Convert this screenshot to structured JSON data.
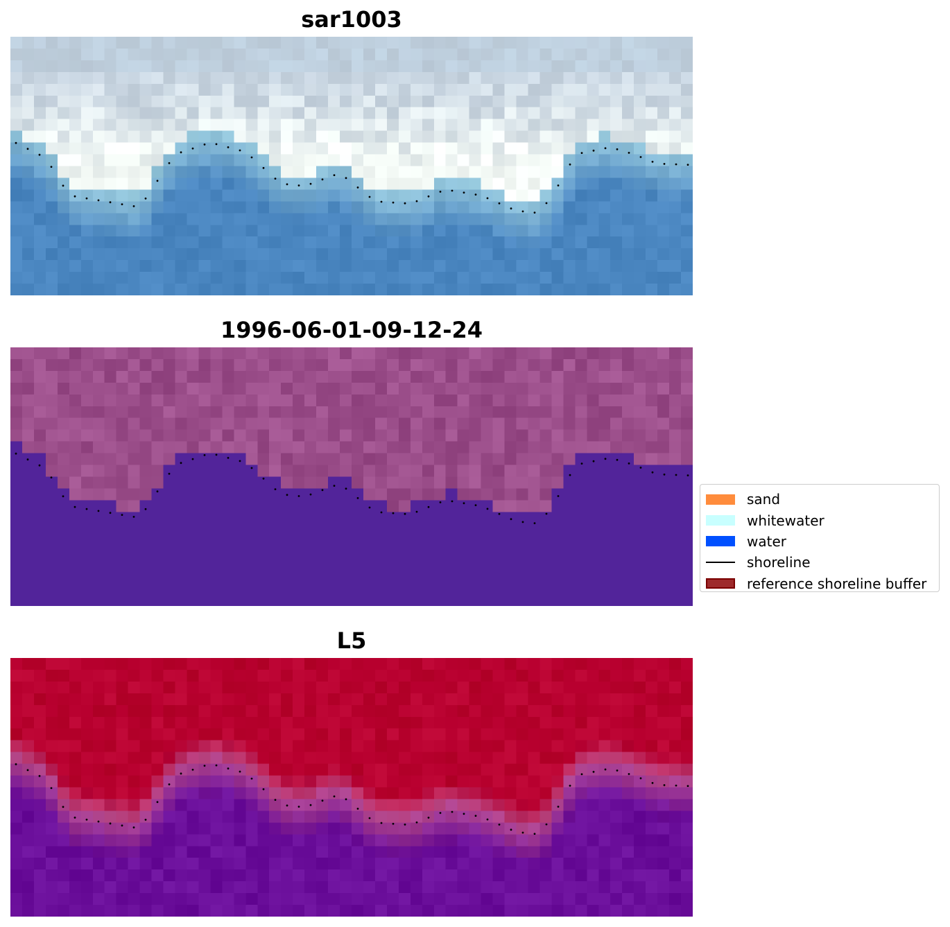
{
  "panels": [
    {
      "title": "sar1003",
      "rendering": "rgb-composite"
    },
    {
      "title": "1996-06-01-09-12-24",
      "rendering": "classification-overlay"
    },
    {
      "title": "L5",
      "rendering": "water-probability"
    }
  ],
  "legend": {
    "items": [
      {
        "label": "sand",
        "color": "#ff8c3c",
        "kind": "patch"
      },
      {
        "label": "whitewater",
        "color": "#c8ffff",
        "kind": "patch"
      },
      {
        "label": "water",
        "color": "#0050ff",
        "kind": "patch"
      },
      {
        "label": "shoreline",
        "color": "#000000",
        "kind": "line"
      },
      {
        "label": "reference shoreline buffer",
        "color": "#9e2a2b",
        "kind": "patch",
        "edge": "#7a0000"
      }
    ]
  },
  "colors": {
    "rgb_sand": "#c7d4e0",
    "rgb_whitewater": "#f5fbf7",
    "rgb_water": "#4a86c0",
    "class_land": "#9b4e8a",
    "class_water": "#52249a",
    "prob_land": "#b8002f",
    "prob_water": "#6a0e9a"
  }
}
